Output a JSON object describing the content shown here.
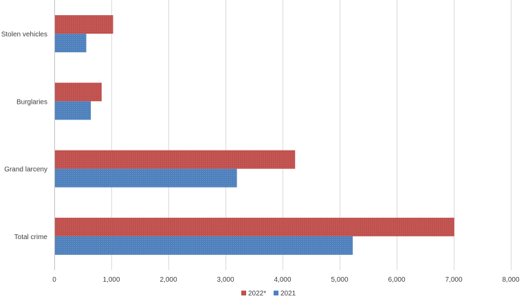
{
  "chart_data": {
    "type": "bar",
    "orientation": "horizontal",
    "categories": [
      "Stolen vehicles",
      "Burglaries",
      "Grand larceny",
      "Total crime"
    ],
    "series": [
      {
        "name": "2022*",
        "color": "#c0504d",
        "values": [
          1030,
          830,
          4220,
          7010
        ]
      },
      {
        "name": "2021",
        "color": "#4f81bd",
        "values": [
          560,
          640,
          3200,
          5230
        ]
      }
    ],
    "xlim": [
      0,
      8000
    ],
    "x_ticks": [
      0,
      1000,
      2000,
      3000,
      4000,
      5000,
      6000,
      7000,
      8000
    ],
    "x_tick_labels": [
      "0",
      "1,000",
      "2,000",
      "3,000",
      "4,000",
      "5,000",
      "6,000",
      "7,000",
      "8,000"
    ],
    "grid": "vertical",
    "legend_position": "bottom",
    "legend_order": [
      "2022*",
      "2021"
    ],
    "title": "",
    "xlabel": "",
    "ylabel": ""
  }
}
